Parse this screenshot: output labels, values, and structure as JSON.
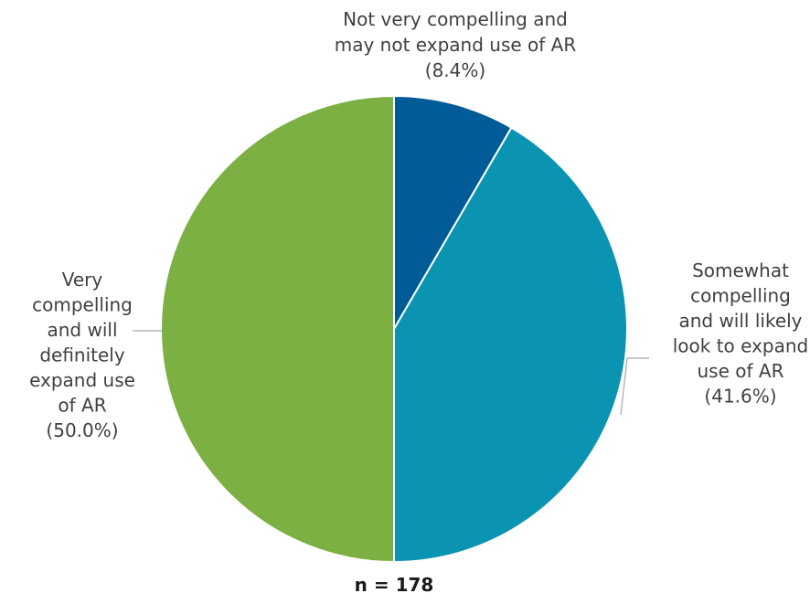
{
  "chart_data": {
    "type": "pie",
    "start_angle_deg": 0,
    "direction": "clockwise",
    "slices": [
      {
        "label_lines": [
          "Not very compelling and",
          "may not expand use of AR",
          "(8.4%)"
        ],
        "value": 8.4,
        "color": "#005b96"
      },
      {
        "label_lines": [
          "Somewhat",
          "compelling",
          "and will likely",
          "look to expand",
          "use of AR",
          "(41.6%)"
        ],
        "value": 41.6,
        "color": "#0b94b2"
      },
      {
        "label_lines": [
          "Very",
          "compelling",
          "and will",
          "definitely",
          "expand use",
          "of AR",
          "(50.0%)"
        ],
        "value": 50.0,
        "color": "#7cb043"
      }
    ],
    "note": "n = 178"
  }
}
